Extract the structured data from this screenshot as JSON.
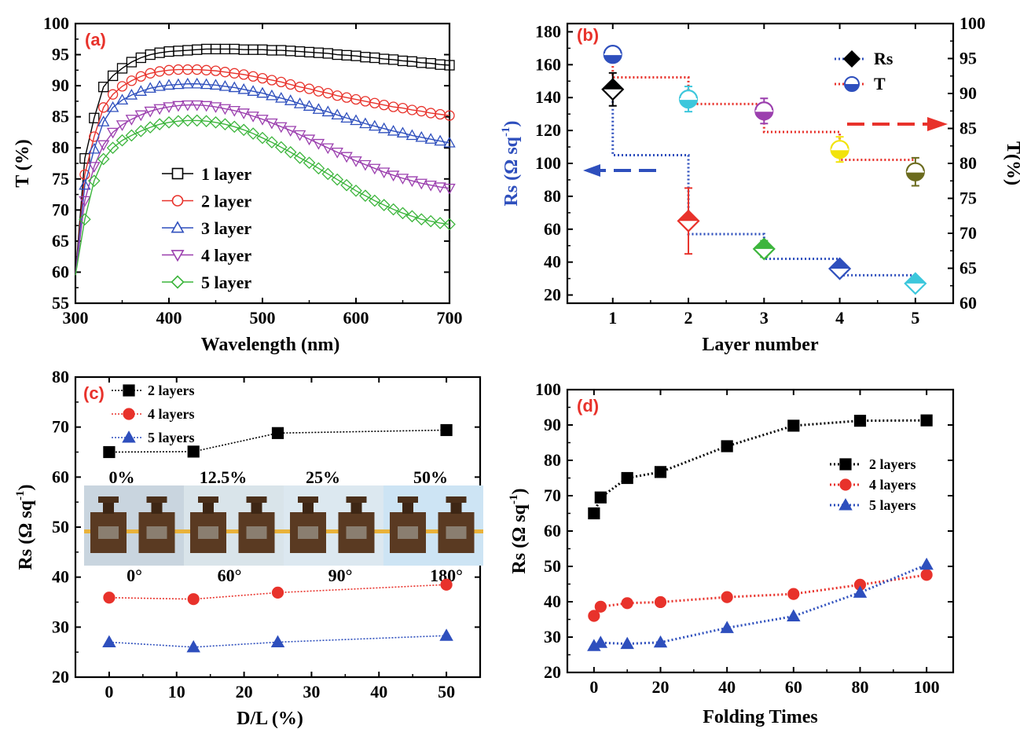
{
  "chart_data": [
    {
      "id": "a",
      "type": "line",
      "panel_label": "(a)",
      "xlabel": "Wavelength (nm)",
      "ylabel": "T (%)",
      "xlim": [
        300,
        700
      ],
      "ylim": [
        55,
        100
      ],
      "xticks": [
        300,
        400,
        500,
        600,
        700
      ],
      "yticks": [
        55,
        60,
        65,
        70,
        75,
        80,
        85,
        90,
        95,
        100
      ],
      "legend": "center-left",
      "x": [
        310,
        320,
        330,
        340,
        350,
        360,
        370,
        380,
        390,
        400,
        410,
        420,
        430,
        440,
        450,
        460,
        470,
        480,
        490,
        500,
        510,
        520,
        530,
        540,
        550,
        560,
        570,
        580,
        590,
        600,
        610,
        620,
        630,
        640,
        650,
        660,
        670,
        680,
        690,
        700
      ],
      "series": [
        {
          "name": "1 layer",
          "color": "#000000",
          "marker": "square",
          "values": [
            78.3,
            84.8,
            89.8,
            91.6,
            92.8,
            93.8,
            94.5,
            95.0,
            95.3,
            95.5,
            95.6,
            95.7,
            95.8,
            95.9,
            95.9,
            95.9,
            95.9,
            95.8,
            95.8,
            95.8,
            95.7,
            95.7,
            95.6,
            95.5,
            95.4,
            95.3,
            95.2,
            95.0,
            94.9,
            94.8,
            94.6,
            94.5,
            94.3,
            94.2,
            94.0,
            93.9,
            93.7,
            93.6,
            93.4,
            93.3
          ]
        },
        {
          "name": "2 layer",
          "color": "#e8322b",
          "marker": "circle",
          "values": [
            75.7,
            81.8,
            86.5,
            88.6,
            89.9,
            90.8,
            91.5,
            92.0,
            92.3,
            92.5,
            92.6,
            92.6,
            92.6,
            92.5,
            92.4,
            92.2,
            92.0,
            91.8,
            91.5,
            91.2,
            90.9,
            90.6,
            90.2,
            89.8,
            89.5,
            89.1,
            88.8,
            88.4,
            88.1,
            87.8,
            87.5,
            87.2,
            86.9,
            86.6,
            86.4,
            86.1,
            85.9,
            85.6,
            85.4,
            85.2
          ]
        },
        {
          "name": "3 layer",
          "color": "#2e4fbd",
          "marker": "triangle-up",
          "values": [
            74.0,
            79.8,
            84.2,
            86.5,
            87.7,
            88.5,
            89.1,
            89.6,
            89.9,
            90.1,
            90.2,
            90.3,
            90.3,
            90.2,
            90.1,
            89.9,
            89.7,
            89.4,
            89.1,
            88.8,
            88.4,
            88.0,
            87.6,
            87.1,
            86.7,
            86.2,
            85.8,
            85.3,
            84.8,
            84.4,
            83.9,
            83.5,
            83.1,
            82.7,
            82.4,
            82.0,
            81.7,
            81.4,
            81.1,
            80.8
          ]
        },
        {
          "name": "4 layer",
          "color": "#9b3fae",
          "marker": "triangle-down",
          "values": [
            71.5,
            77.0,
            80.5,
            82.5,
            83.7,
            84.6,
            85.3,
            85.9,
            86.3,
            86.6,
            86.8,
            86.9,
            86.9,
            86.8,
            86.6,
            86.3,
            86.0,
            85.6,
            85.1,
            84.6,
            84.0,
            83.4,
            82.8,
            82.1,
            81.4,
            80.7,
            80.0,
            79.3,
            78.6,
            77.9,
            77.3,
            76.7,
            76.1,
            75.6,
            75.1,
            74.7,
            74.3,
            74.0,
            73.7,
            73.5
          ]
        },
        {
          "name": "5 layer",
          "color": "#3cb53c",
          "marker": "diamond",
          "values": [
            68.5,
            74.7,
            78.2,
            80.0,
            81.2,
            82.0,
            82.7,
            83.3,
            83.8,
            84.1,
            84.3,
            84.4,
            84.4,
            84.3,
            84.1,
            83.8,
            83.4,
            82.9,
            82.3,
            81.6,
            80.9,
            80.1,
            79.3,
            78.4,
            77.6,
            76.7,
            75.8,
            74.9,
            74.0,
            73.1,
            72.3,
            71.5,
            70.8,
            70.1,
            69.5,
            69.0,
            68.5,
            68.2,
            67.9,
            67.7
          ]
        }
      ]
    },
    {
      "id": "b",
      "type": "scatter",
      "panel_label": "(b)",
      "xlabel": "Layer number",
      "ylabel": "Rs (Ω sq",
      "ylabel_sup": "-1",
      "ylabel_close": ")",
      "y2label": "T(%)",
      "xlim": [
        0.4,
        5.5
      ],
      "ylim": [
        15,
        185
      ],
      "y2lim": [
        60,
        100
      ],
      "xticks": [
        1,
        2,
        3,
        4,
        5
      ],
      "yticks": [
        20,
        40,
        60,
        80,
        100,
        120,
        140,
        160,
        180
      ],
      "y2ticks": [
        60,
        65,
        70,
        75,
        80,
        85,
        90,
        95,
        100
      ],
      "legend": "top-right",
      "point_colors": [
        "#000000",
        "#e8322b",
        "#3cb53c",
        "#2e4fbd",
        "#3cc7dc"
      ],
      "t_colors": [
        "#2e4fbd",
        "#3cc7dc",
        "#9b3fae",
        "#f2e30b",
        "#6b6b1e"
      ],
      "series": [
        {
          "name": "Rs",
          "axis": "left",
          "x": [
            1,
            2,
            3,
            4,
            5
          ],
          "values": [
            145,
            65,
            48,
            36,
            27
          ],
          "err": [
            10,
            20,
            5,
            3,
            2
          ]
        },
        {
          "name": "T",
          "axis": "right",
          "x": [
            1,
            2,
            3,
            4,
            5
          ],
          "values": [
            95.6,
            89.2,
            87.5,
            82.0,
            78.8
          ],
          "err": [
            0.8,
            1.8,
            1.8,
            1.8,
            2.0
          ]
        }
      ]
    },
    {
      "id": "c",
      "type": "line",
      "panel_label": "(c)",
      "xlabel": "D/L (%)",
      "ylabel": "Rs (Ω sq",
      "ylabel_sup": "-1",
      "ylabel_close": ")",
      "xlim": [
        -5,
        55
      ],
      "ylim": [
        20,
        80
      ],
      "xticks": [
        0,
        10,
        20,
        30,
        40,
        50
      ],
      "yticks": [
        20,
        30,
        40,
        50,
        60,
        70,
        80
      ],
      "legend": "top-left",
      "x": [
        0,
        12.5,
        25,
        50
      ],
      "series": [
        {
          "name": "2 layers",
          "color": "#000000",
          "marker": "square",
          "values": [
            65,
            65.1,
            68.8,
            69.4
          ]
        },
        {
          "name": "4 layers",
          "color": "#e8322b",
          "marker": "circle",
          "values": [
            35.9,
            35.6,
            36.9,
            38.5
          ]
        },
        {
          "name": "5 layers",
          "color": "#2e4fbd",
          "marker": "triangle-up",
          "values": [
            27,
            26,
            27,
            28.3
          ]
        }
      ],
      "inset_photo": {
        "top_labels": [
          "0%",
          "12.5%",
          "25%",
          "50%"
        ],
        "bottom_labels": [
          "0°",
          "60°",
          "90°",
          "180°"
        ]
      }
    },
    {
      "id": "d",
      "type": "line",
      "panel_label": "(d)",
      "xlabel": "Folding Times",
      "ylabel": "Rs (Ω sq",
      "ylabel_sup": "-1",
      "ylabel_close": ")",
      "xlim": [
        -8,
        108
      ],
      "ylim": [
        20,
        100
      ],
      "xticks": [
        0,
        20,
        40,
        60,
        80,
        100
      ],
      "yticks": [
        20,
        30,
        40,
        50,
        60,
        70,
        80,
        90,
        100
      ],
      "legend": "top-right",
      "x": [
        0,
        2,
        10,
        20,
        40,
        60,
        80,
        100
      ],
      "series": [
        {
          "name": "2 layers",
          "color": "#000000",
          "marker": "square",
          "values": [
            65,
            69.5,
            75,
            76.7,
            84,
            89.8,
            91.2,
            91.3
          ]
        },
        {
          "name": "4 layers",
          "color": "#e8322b",
          "marker": "circle",
          "values": [
            36,
            38.6,
            39.6,
            39.9,
            41.3,
            42.2,
            44.8,
            47.6
          ]
        },
        {
          "name": "5 layers",
          "color": "#2e4fbd",
          "marker": "triangle-up",
          "values": [
            27.5,
            28.4,
            28.1,
            28.5,
            32.6,
            35.9,
            42.6,
            50.5
          ]
        }
      ]
    }
  ]
}
